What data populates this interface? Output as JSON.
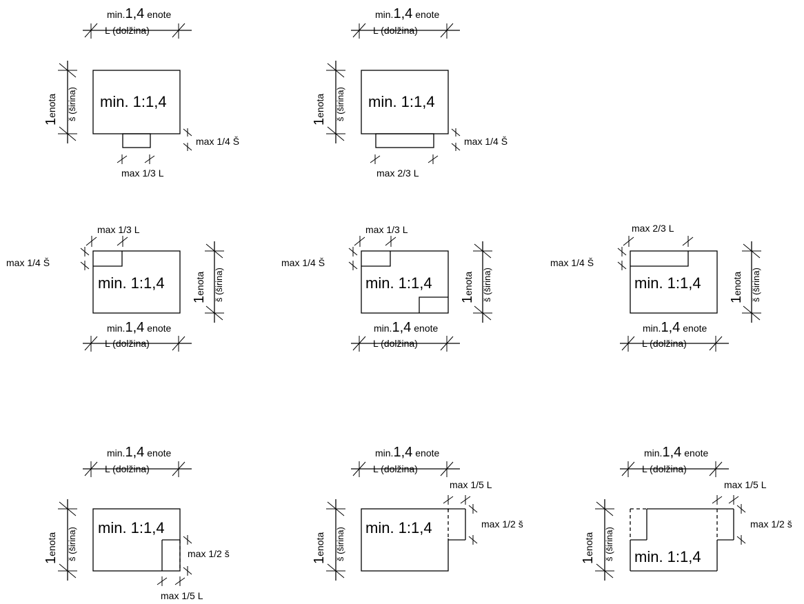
{
  "labels": {
    "ratio": "min. 1:1,4",
    "length_prefix": "min.",
    "length_number": "1,4",
    "length_suffix": "enote",
    "length_name": "L (dolžina)",
    "width_number": "1",
    "width_suffix": "enota",
    "width_name": "š (širina)"
  },
  "panels": [
    {
      "id": "p1",
      "notes": [
        "max 1/4 Š",
        "max 1/3 L"
      ]
    },
    {
      "id": "p2",
      "notes": [
        "max 1/4 Š",
        "max 2/3 L"
      ]
    },
    {
      "id": "p3",
      "notes": [
        "max 1/3 L",
        "max 1/4 Š"
      ]
    },
    {
      "id": "p4",
      "notes": [
        "max 1/3 L",
        "max 1/4 Š"
      ]
    },
    {
      "id": "p5",
      "notes": [
        "max 2/3 L",
        "max 1/4 Š"
      ]
    },
    {
      "id": "p6",
      "notes": [
        "max 1/2 š",
        "max 1/5 L"
      ]
    },
    {
      "id": "p7",
      "notes": [
        "max 1/5 L",
        "max 1/2 š"
      ]
    },
    {
      "id": "p8",
      "notes": [
        "max 1/5 L",
        "max 1/2 š"
      ]
    }
  ]
}
